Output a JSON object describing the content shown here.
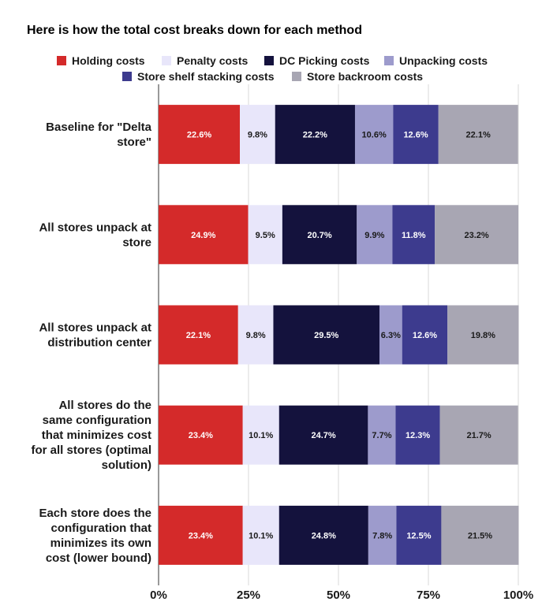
{
  "chart_data": {
    "type": "bar",
    "orientation": "horizontal",
    "stacked": "percent",
    "title": "Here is how the total cost breaks down for each method",
    "legend_position": "top",
    "grid": true,
    "xlim": [
      0,
      100
    ],
    "x_ticks": [
      "0%",
      "25%",
      "50%",
      "75%",
      "100%"
    ],
    "categories": [
      [
        "Baseline for \"Delta",
        "store\""
      ],
      [
        "All stores unpack at",
        "store"
      ],
      [
        "All stores unpack at",
        "distribution center"
      ],
      [
        "All stores do the",
        "same configuration",
        "that minimizes cost",
        "for all stores (optimal",
        "solution)"
      ],
      [
        "Each store does the",
        "configuration that",
        "minimizes its own",
        "cost (lower bound)"
      ]
    ],
    "series": [
      {
        "name": "Holding costs",
        "color": "#d42a2a",
        "label_color": "#ffffff",
        "values": [
          22.6,
          24.9,
          22.1,
          23.4,
          23.4
        ]
      },
      {
        "name": "Penalty costs",
        "color": "#e8e6fa",
        "label_color": "#1a1a1a",
        "values": [
          9.8,
          9.5,
          9.8,
          10.1,
          10.1
        ]
      },
      {
        "name": "DC Picking costs",
        "color": "#14123d",
        "label_color": "#ffffff",
        "values": [
          22.2,
          20.7,
          29.5,
          24.7,
          24.8
        ]
      },
      {
        "name": "Unpacking costs",
        "color": "#9d9bcc",
        "label_color": "#1a1a1a",
        "values": [
          10.6,
          9.9,
          6.3,
          7.7,
          7.8
        ]
      },
      {
        "name": "Store shelf stacking costs",
        "color": "#3d3b8e",
        "label_color": "#ffffff",
        "values": [
          12.6,
          11.8,
          12.6,
          12.3,
          12.5
        ]
      },
      {
        "name": "Store backroom costs",
        "color": "#a8a6b3",
        "label_color": "#1a1a1a",
        "values": [
          22.1,
          23.2,
          19.8,
          21.7,
          21.5
        ]
      }
    ]
  }
}
